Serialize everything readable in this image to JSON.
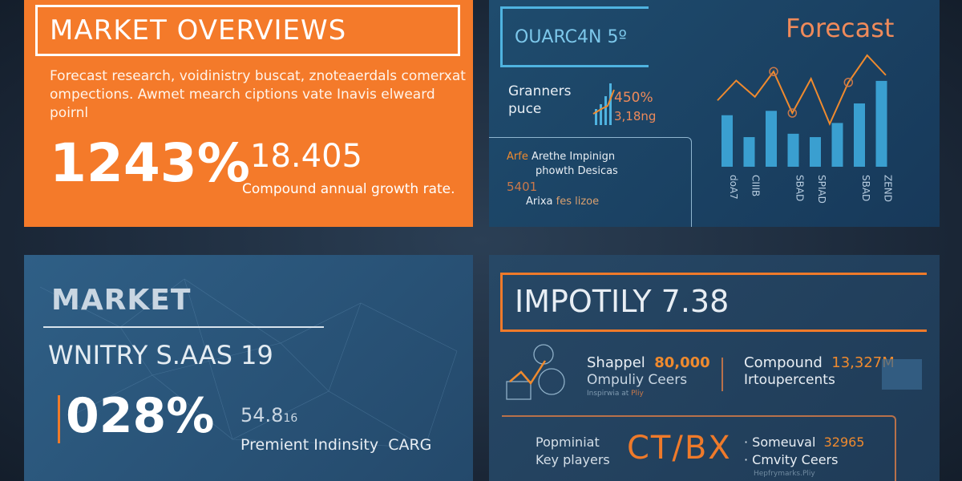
{
  "overview": {
    "title": "MARKET OVERVIEWS",
    "description": "Forecast research, voidinistry buscat, znoteaerdals comerxat ompections. Awmet mearch ciptions vate Inavis elweard poirnl",
    "big_value": "1243%",
    "secondary_value": "18.405",
    "secondary_caption": "Compound annual growth rate."
  },
  "forecast_panel": {
    "code_title": "OUARC4N 5º",
    "label_line1": "Granners",
    "label_line2": "puce",
    "stat1": "450%",
    "stat2": "3,18ng",
    "box_line1_accent": "Arfe",
    "box_line1": "Arethe Impinign",
    "box_line2": "phowth Desicas",
    "box_value": "5401",
    "box_line3": "Arixa",
    "box_line3_accent": "fes lizoe",
    "chart_title": "Forecast"
  },
  "chart_data": {
    "type": "bar",
    "title": "Forecast",
    "categories": [
      "doA7",
      "CIIIB",
      "",
      "SBAD",
      "SPIAD",
      "",
      "SBAD",
      "ZEND"
    ],
    "values": [
      153,
      88,
      166,
      98,
      88,
      130,
      188,
      255
    ],
    "line": [
      115,
      170,
      125,
      195,
      80,
      175,
      50,
      165,
      240,
      185
    ],
    "colors": {
      "bars": "#3a9fd0",
      "line": "#ef8a2e"
    }
  },
  "market_panel": {
    "title": "MARKET",
    "subtitle": "WNITRY S.AAS 19",
    "big_value": "028%",
    "small_value": "54.8",
    "small_suffix": "16",
    "caption": "Premient Indinsity",
    "caption_accent": "CARG"
  },
  "impact_panel": {
    "title": "IMPOTILY 7.38",
    "item1_label": "Shappel",
    "item1_value": "80,000",
    "item1_sub": "Ompuliy Ceers",
    "item1_note": "Inspirwia at",
    "item1_note_accent": "Pliy",
    "item2_label": "Compound",
    "item2_value": "13,327M",
    "item2_sub": "Irtoupercents",
    "players_line1": "Popminiat",
    "players_line2": "Key players",
    "logo_text": "CT/BX",
    "item3_label": "Someuval",
    "item3_value": "32965",
    "item4_label": "Cmvity Ceers",
    "item4_note": "Hepfrymarks.Pliy"
  },
  "colors": {
    "orange": "#f47a2a",
    "blue_accent": "#4fb3e0",
    "dark_bg": "#1a2636"
  }
}
